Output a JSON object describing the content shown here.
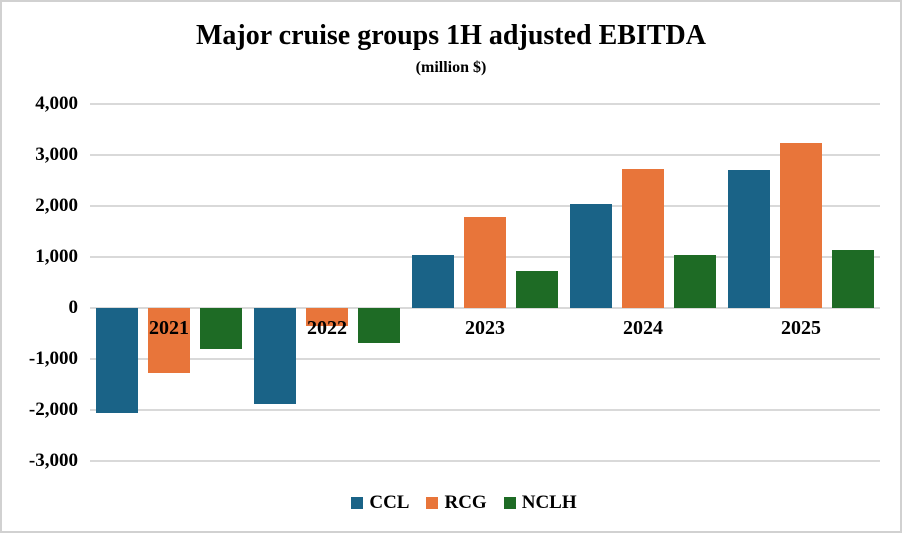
{
  "chart_data": {
    "type": "bar",
    "title": "Major cruise groups 1H adjusted EBITDA",
    "subtitle": "(million $)",
    "xlabel": "",
    "ylabel": "",
    "categories": [
      "2021",
      "2022",
      "2023",
      "2024",
      "2025"
    ],
    "series": [
      {
        "name": "CCL",
        "color": "#1A6387",
        "values": [
          -2050,
          -1880,
          1040,
          2040,
          2700
        ]
      },
      {
        "name": "RCG",
        "color": "#E8753A",
        "values": [
          -1270,
          -350,
          1780,
          2720,
          3230
        ]
      },
      {
        "name": "NCLH",
        "color": "#1E6B25",
        "values": [
          -800,
          -680,
          730,
          1040,
          1130
        ]
      }
    ],
    "ylim": [
      -3000,
      4000
    ],
    "ytick_step": 1000,
    "grid": true,
    "gridline_color": "#D9D9D9",
    "legend_position": "bottom",
    "axis_text_color": "#000000",
    "frame_border_color": "#D1D1D1",
    "background_color": "#FFFFFF"
  }
}
